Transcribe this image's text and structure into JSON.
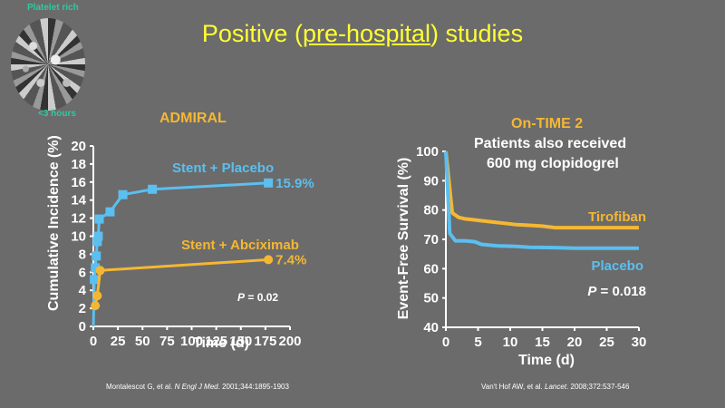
{
  "slide": {
    "title_prefix": "Positive (",
    "title_underlined": "pre-hospital",
    "title_suffix": ") studies",
    "title_color": "#ffff33"
  },
  "logo": {
    "top_label": "Platelet rich",
    "bottom_label": "<3 hours",
    "label_color": "#2fc9a0"
  },
  "citations": {
    "left": {
      "prefix": "Montalescot G, et al. ",
      "journal": "N Engl J Med",
      "suffix": ". 2001;344:1895-1903"
    },
    "right": {
      "prefix": "Van't Hof AW, et al. ",
      "journal": "Lancet",
      "suffix": ". 2008;372:537-546"
    }
  },
  "chart_data": [
    {
      "type": "line",
      "title": "ADMIRAL",
      "xlabel": "Time (d)",
      "ylabel": "Cumulative Incidence (%)",
      "xlim": [
        0,
        200
      ],
      "ylim": [
        0,
        20
      ],
      "xticks": [
        0,
        25,
        50,
        75,
        100,
        125,
        150,
        175,
        200
      ],
      "yticks": [
        0,
        2,
        4,
        6,
        8,
        10,
        12,
        14,
        16,
        18,
        20
      ],
      "grid": false,
      "annotation": {
        "p_label": "P",
        "p_value": " = 0.02"
      },
      "series": [
        {
          "name": "Stent + Placebo",
          "color": "#5bbfef",
          "marker": "square",
          "end_label": "15.9%",
          "points": [
            [
              0,
              0
            ],
            [
              1,
              5.2
            ],
            [
              2,
              6.5
            ],
            [
              3,
              7.8
            ],
            [
              4,
              9.4
            ],
            [
              5,
              10
            ],
            [
              6,
              11.9
            ],
            [
              17,
              12.7
            ],
            [
              30,
              14.6
            ],
            [
              60,
              15.2
            ],
            [
              178,
              15.9
            ]
          ]
        },
        {
          "name": "Stent + Abciximab",
          "color": "#f5b733",
          "marker": "circle",
          "end_label": "7.4%",
          "points": [
            [
              0,
              2
            ],
            [
              2,
              2.3
            ],
            [
              4,
              3.4
            ],
            [
              7,
              6.2
            ],
            [
              178,
              7.4
            ]
          ]
        }
      ]
    },
    {
      "type": "line",
      "title": "On-TIME 2",
      "subtitle": "Patients also received 600 mg clopidogrel",
      "subtitle_line1": "Patients also received",
      "subtitle_line2": "600 mg clopidogrel",
      "xlabel": "Time (d)",
      "ylabel": "Event-Free Survival (%)",
      "xlim": [
        0,
        30
      ],
      "ylim": [
        40,
        100
      ],
      "xticks": [
        0,
        5,
        10,
        15,
        20,
        25,
        30
      ],
      "yticks": [
        40,
        50,
        60,
        70,
        80,
        90,
        100
      ],
      "grid": false,
      "annotation": {
        "p_label": "P",
        "p_value": " = 0.018"
      },
      "series": [
        {
          "name": "Tirofiban",
          "color": "#f5b733",
          "points": [
            [
              0,
              100
            ],
            [
              1,
              79
            ],
            [
              2,
              77.5
            ],
            [
              3,
              77
            ],
            [
              5,
              76.5
            ],
            [
              7,
              76
            ],
            [
              9,
              75.5
            ],
            [
              11,
              75
            ],
            [
              13,
              74.8
            ],
            [
              15,
              74.5
            ],
            [
              17,
              74
            ],
            [
              20,
              74
            ],
            [
              25,
              74
            ],
            [
              30,
              74
            ]
          ]
        },
        {
          "name": "Placebo",
          "color": "#5bbfef",
          "points": [
            [
              0,
              100
            ],
            [
              0.6,
              72
            ],
            [
              1.5,
              69.5
            ],
            [
              3,
              69.5
            ],
            [
              4.5,
              69.2
            ],
            [
              5.5,
              68.3
            ],
            [
              8,
              67.8
            ],
            [
              11,
              67.6
            ],
            [
              13,
              67.3
            ],
            [
              17,
              67.2
            ],
            [
              20,
              67
            ],
            [
              25,
              67
            ],
            [
              30,
              67
            ]
          ]
        }
      ]
    }
  ]
}
